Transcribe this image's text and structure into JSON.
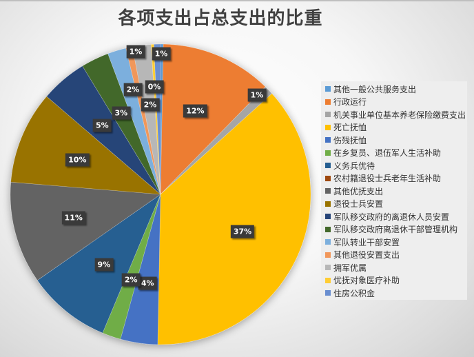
{
  "chart_data": {
    "type": "pie",
    "title": "各项支出占总支出的比重",
    "start_angle_deg": 0,
    "direction": "clockwise",
    "legend_position": "right",
    "series": [
      {
        "name": "其他一般公共服务支出",
        "value": 0.3,
        "label": "",
        "color": "#5b9bd5"
      },
      {
        "name": "行政运行",
        "value": 12,
        "label": "12%",
        "color": "#ed7d31"
      },
      {
        "name": "机关事业单位基本养老保险缴费支出",
        "value": 1,
        "label": "1%",
        "color": "#a5a5a5"
      },
      {
        "name": "死亡抚恤",
        "value": 37,
        "label": "37%",
        "color": "#ffc000"
      },
      {
        "name": "伤残抚恤",
        "value": 4,
        "label": "4%",
        "color": "#4472c4"
      },
      {
        "name": "在乡复员、退伍军人生活补助",
        "value": 2,
        "label": "2%",
        "color": "#70ad47"
      },
      {
        "name": "义务兵优待",
        "value": 9,
        "label": "9%",
        "color": "#255e91"
      },
      {
        "name": "农村籍退役士兵老年生活补助",
        "value": 0,
        "label": "",
        "color": "#9e480e"
      },
      {
        "name": "其他优抚支出",
        "value": 11,
        "label": "11%",
        "color": "#636363"
      },
      {
        "name": "退役士兵安置",
        "value": 10,
        "label": "10%",
        "color": "#997300"
      },
      {
        "name": "军队移交政府的离退休人员安置",
        "value": 5,
        "label": "5%",
        "color": "#264478"
      },
      {
        "name": "军队移交政府离退休干部管理机构",
        "value": 3,
        "label": "3%",
        "color": "#43682b"
      },
      {
        "name": "军队转业干部安置",
        "value": 2,
        "label": "2%",
        "color": "#7cafdd"
      },
      {
        "name": "其他退役安置支出",
        "value": 0.7,
        "label": "1%",
        "color": "#f1975a"
      },
      {
        "name": "拥军优属",
        "value": 2,
        "label": "2%",
        "color": "#b7b7b7"
      },
      {
        "name": "优抚对象医疗补助",
        "value": 0.3,
        "label": "0%",
        "color": "#ffcd33"
      },
      {
        "name": "住房公积金",
        "value": 0.7,
        "label": "1%",
        "color": "#698ed0"
      }
    ]
  }
}
